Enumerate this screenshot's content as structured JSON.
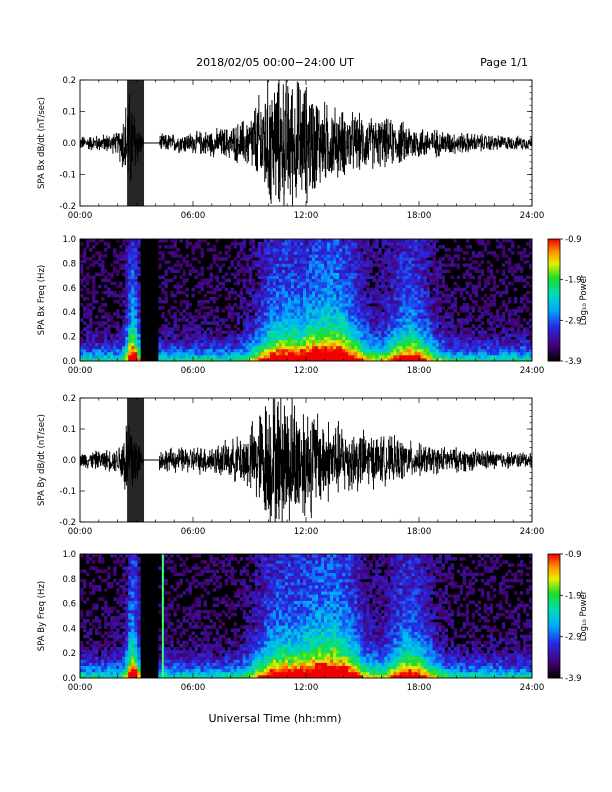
{
  "header": {
    "title": "2018/02/05  00:00−24:00 UT",
    "page": "Page 1/1"
  },
  "footer": {
    "xlabel": "Universal Time (hh:mm)"
  },
  "colorbar": {
    "label": "Log₁₀ Power",
    "ticks": [
      "-0.9",
      "-1.9",
      "-2.9",
      "-3.9"
    ],
    "range": [
      -3.9,
      -0.9
    ]
  },
  "chart_data": [
    {
      "type": "line",
      "ylabel": "SPA Bx dB/dt (nT/sec)",
      "x_ticks": [
        "00:00",
        "06:00",
        "12:00",
        "18:00",
        "24:00"
      ],
      "xlim_hours": [
        0,
        24
      ],
      "ylim": [
        -0.2,
        0.2
      ],
      "y_ticks": [
        "0.2",
        "0.1",
        "0.0",
        "-0.1",
        "-0.2"
      ],
      "envelope_hours": [
        0,
        1,
        2,
        2.6,
        3.4,
        4,
        5,
        6,
        7,
        8,
        9,
        10,
        11,
        12,
        13,
        14,
        15,
        16,
        17,
        18,
        19,
        20,
        21,
        22,
        23,
        24
      ],
      "envelope_amp": [
        0.025,
        0.03,
        0.04,
        0.2,
        0,
        0.03,
        0.035,
        0.04,
        0.05,
        0.06,
        0.1,
        0.25,
        0.25,
        0.22,
        0.15,
        0.12,
        0.1,
        0.09,
        0.08,
        0.06,
        0.05,
        0.04,
        0.035,
        0.03,
        0.025,
        0.025
      ],
      "gap_hours": [
        3.4,
        4.2
      ]
    },
    {
      "type": "heatmap",
      "ylabel": "SPA Bx Freq (Hz)",
      "x_ticks": [
        "00:00",
        "06:00",
        "12:00",
        "18:00",
        "24:00"
      ],
      "xlim_hours": [
        0,
        24
      ],
      "ylim": [
        0,
        1.0
      ],
      "y_ticks": [
        "1.0",
        "0.8",
        "0.6",
        "0.4",
        "0.2",
        "0.0"
      ],
      "gap_hours": [
        3.2,
        4.1
      ],
      "hot_hours": [
        2.8,
        10.5,
        12.5,
        14.0,
        17.5
      ]
    },
    {
      "type": "line",
      "ylabel": "SPA By dB/dt (nT/sec)",
      "x_ticks": [
        "00:00",
        "06:00",
        "12:00",
        "18:00",
        "24:00"
      ],
      "xlim_hours": [
        0,
        24
      ],
      "ylim": [
        -0.2,
        0.2
      ],
      "y_ticks": [
        "0.2",
        "0.1",
        "0.0",
        "-0.1",
        "-0.2"
      ],
      "envelope_hours": [
        0,
        1,
        2,
        2.6,
        3.4,
        4,
        5,
        6,
        7,
        8,
        9,
        10,
        11,
        12,
        13,
        14,
        15,
        16,
        17,
        18,
        19,
        20,
        21,
        22,
        23,
        24
      ],
      "envelope_amp": [
        0.03,
        0.035,
        0.045,
        0.2,
        0,
        0.04,
        0.045,
        0.05,
        0.055,
        0.07,
        0.12,
        0.25,
        0.25,
        0.22,
        0.16,
        0.13,
        0.11,
        0.09,
        0.08,
        0.06,
        0.05,
        0.045,
        0.04,
        0.035,
        0.03,
        0.03
      ],
      "gap_hours": [
        3.4,
        4.2
      ]
    },
    {
      "type": "heatmap",
      "ylabel": "SPA By Freq (Hz)",
      "x_ticks": [
        "00:00",
        "06:00",
        "12:00",
        "18:00",
        "24:00"
      ],
      "xlim_hours": [
        0,
        24
      ],
      "ylim": [
        0,
        1.0
      ],
      "y_ticks": [
        "1.0",
        "0.8",
        "0.6",
        "0.4",
        "0.2",
        "0.0"
      ],
      "gap_hours": [
        3.2,
        4.1
      ],
      "hot_hours": [
        2.8,
        10.5,
        12.5,
        14.0,
        17.5
      ],
      "line_hours": [
        4.4
      ]
    }
  ]
}
